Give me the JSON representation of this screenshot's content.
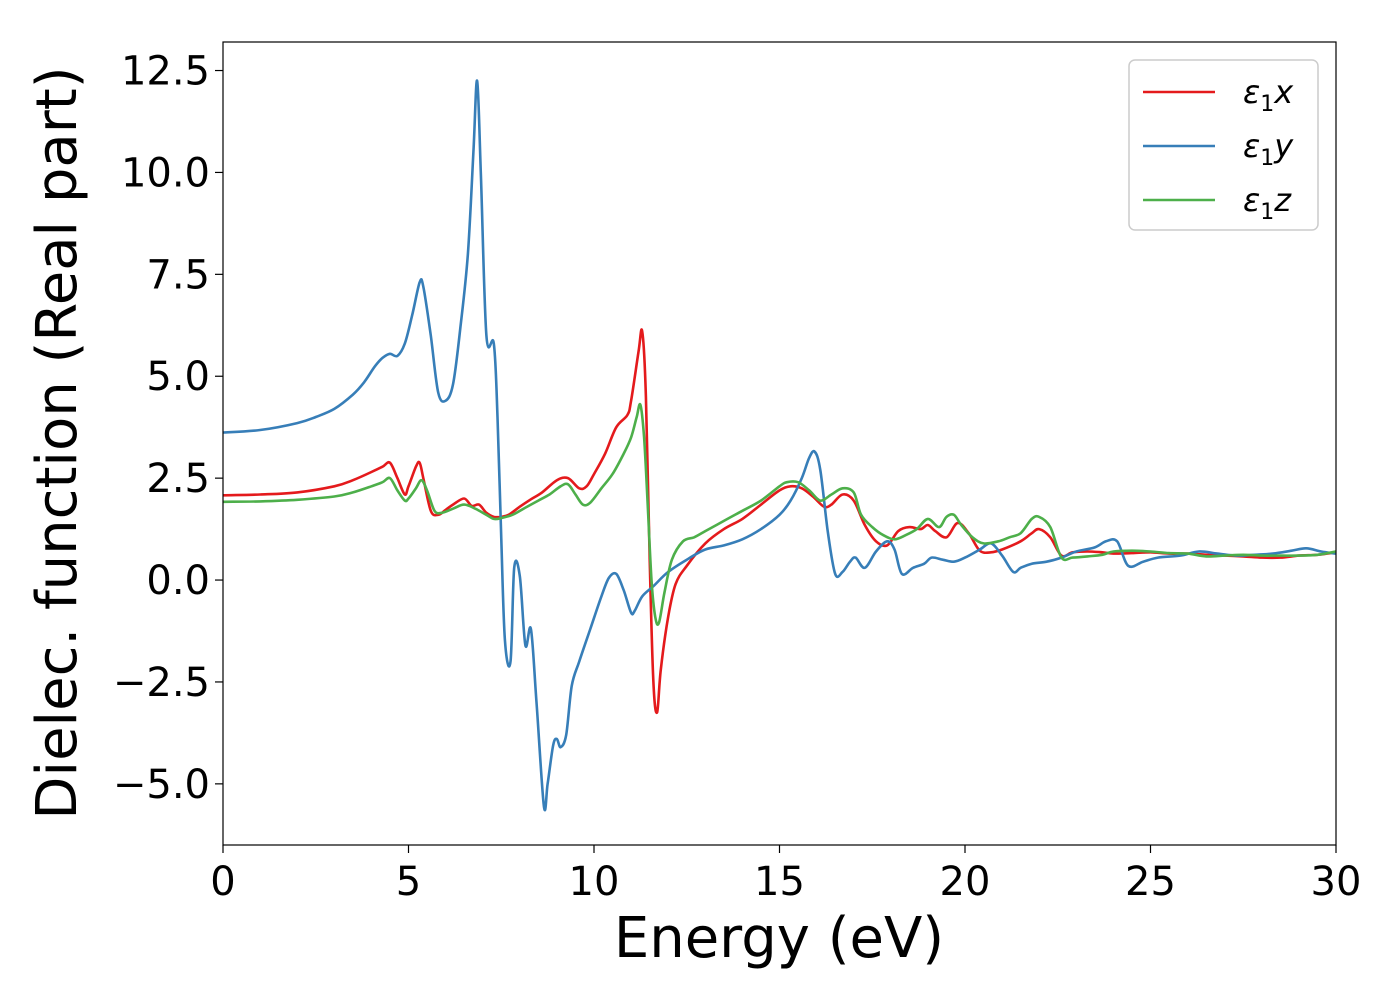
{
  "chart_data": {
    "type": "line",
    "title": "",
    "xlabel": "Energy (eV)",
    "ylabel": "Dielec. function (Real part)",
    "xlim": [
      0,
      30
    ],
    "ylim": [
      -6.5,
      13.2
    ],
    "xticks": [
      "0",
      "5",
      "10",
      "15",
      "20",
      "25",
      "30"
    ],
    "yticks": [
      "−5.0",
      "−2.5",
      "0.0",
      "2.5",
      "5.0",
      "7.5",
      "10.0",
      "12.5"
    ],
    "grid": false,
    "legend_position": "top-right",
    "series": [
      {
        "name": "ε1x",
        "legend": {
          "symbol": "ε",
          "sub": "1",
          "axis": "x"
        },
        "color": "#e41a1c",
        "x": [
          0,
          1,
          2,
          3,
          3.5,
          4,
          4.3,
          4.5,
          4.7,
          4.9,
          5.0,
          5.2,
          5.3,
          5.4,
          5.6,
          5.8,
          6.0,
          6.2,
          6.5,
          6.7,
          6.9,
          7.1,
          7.3,
          7.5,
          7.7,
          8.0,
          8.3,
          8.6,
          9.0,
          9.3,
          9.6,
          9.8,
          10.0,
          10.3,
          10.6,
          10.9,
          11.0,
          11.2,
          11.3,
          11.4,
          11.5,
          11.6,
          11.7,
          11.8,
          12.0,
          12.2,
          12.5,
          13,
          13.5,
          14,
          14.5,
          15,
          15.3,
          15.6,
          15.9,
          16.2,
          16.4,
          16.7,
          17.0,
          17.3,
          17.6,
          17.9,
          18.2,
          18.5,
          18.8,
          19.0,
          19.2,
          19.5,
          19.8,
          20.1,
          20.4,
          20.7,
          21.0,
          21.5,
          21.8,
          22.0,
          22.3,
          22.6,
          22.9,
          23.3,
          23.7,
          24.0,
          24.5,
          25,
          25.5,
          26,
          26.5,
          27,
          27.5,
          28,
          28.5,
          29,
          29.5,
          30
        ],
        "y": [
          2.08,
          2.1,
          2.15,
          2.3,
          2.45,
          2.65,
          2.78,
          2.88,
          2.5,
          2.1,
          2.3,
          2.78,
          2.88,
          2.5,
          1.7,
          1.6,
          1.72,
          1.85,
          2.0,
          1.82,
          1.85,
          1.65,
          1.55,
          1.55,
          1.6,
          1.8,
          1.98,
          2.15,
          2.45,
          2.5,
          2.25,
          2.3,
          2.6,
          3.1,
          3.75,
          4.05,
          4.4,
          5.6,
          6.1,
          4.5,
          0.5,
          -2.5,
          -3.25,
          -2.2,
          -0.9,
          -0.1,
          0.35,
          0.9,
          1.25,
          1.5,
          1.85,
          2.2,
          2.3,
          2.25,
          2.05,
          1.8,
          1.85,
          2.1,
          1.95,
          1.35,
          0.95,
          0.85,
          1.2,
          1.3,
          1.25,
          1.35,
          1.2,
          1.05,
          1.4,
          1.15,
          0.72,
          0.68,
          0.75,
          0.95,
          1.15,
          1.25,
          1.05,
          0.6,
          0.68,
          0.7,
          0.68,
          0.65,
          0.66,
          0.68,
          0.65,
          0.65,
          0.62,
          0.6,
          0.58,
          0.55,
          0.55,
          0.6,
          0.62,
          0.68
        ]
      },
      {
        "name": "ε1y",
        "legend": {
          "symbol": "ε",
          "sub": "1",
          "axis": "y"
        },
        "color": "#377eb8",
        "x": [
          0,
          1,
          2,
          2.5,
          3,
          3.5,
          3.8,
          4.1,
          4.3,
          4.5,
          4.7,
          4.9,
          5.1,
          5.3,
          5.4,
          5.6,
          5.8,
          6.0,
          6.2,
          6.4,
          6.6,
          6.75,
          6.85,
          6.95,
          7.1,
          7.3,
          7.4,
          7.5,
          7.6,
          7.75,
          7.85,
          8.0,
          8.15,
          8.3,
          8.45,
          8.65,
          8.75,
          8.9,
          9.0,
          9.1,
          9.25,
          9.4,
          9.6,
          9.9,
          10.2,
          10.4,
          10.6,
          10.8,
          11.0,
          11.1,
          11.3,
          11.6,
          12,
          12.5,
          13,
          13.5,
          14,
          14.5,
          15,
          15.3,
          15.6,
          15.8,
          15.95,
          16.1,
          16.3,
          16.5,
          16.7,
          16.9,
          17.05,
          17.3,
          17.6,
          17.9,
          18.1,
          18.3,
          18.6,
          18.9,
          19.1,
          19.4,
          19.7,
          20.0,
          20.4,
          20.7,
          21.0,
          21.3,
          21.5,
          21.8,
          22.2,
          22.6,
          23.0,
          23.5,
          23.8,
          24.1,
          24.4,
          24.8,
          25.2,
          25.8,
          26.3,
          26.8,
          27.3,
          27.8,
          28.3,
          28.8,
          29.2,
          29.6,
          30
        ],
        "y": [
          3.62,
          3.68,
          3.85,
          4.0,
          4.2,
          4.55,
          4.85,
          5.25,
          5.45,
          5.55,
          5.5,
          5.8,
          6.5,
          7.3,
          7.2,
          6.0,
          4.6,
          4.4,
          4.8,
          6.2,
          8.0,
          10.5,
          12.25,
          10.0,
          6.0,
          5.8,
          4.0,
          1.0,
          -1.5,
          -2.0,
          0.3,
          0.1,
          -1.6,
          -1.2,
          -3.0,
          -5.55,
          -5.0,
          -4.05,
          -3.9,
          -4.1,
          -3.8,
          -2.6,
          -2.0,
          -1.2,
          -0.4,
          0.05,
          0.15,
          -0.25,
          -0.8,
          -0.75,
          -0.4,
          -0.15,
          0.2,
          0.5,
          0.75,
          0.85,
          1.0,
          1.25,
          1.6,
          1.95,
          2.5,
          3.0,
          3.15,
          2.7,
          1.2,
          0.15,
          0.2,
          0.45,
          0.55,
          0.3,
          0.7,
          0.95,
          0.75,
          0.15,
          0.3,
          0.4,
          0.55,
          0.5,
          0.45,
          0.55,
          0.75,
          0.9,
          0.6,
          0.2,
          0.3,
          0.4,
          0.45,
          0.55,
          0.7,
          0.8,
          0.95,
          0.95,
          0.35,
          0.45,
          0.55,
          0.6,
          0.7,
          0.65,
          0.6,
          0.62,
          0.65,
          0.72,
          0.78,
          0.7,
          0.65
        ]
      },
      {
        "name": "ε1z",
        "legend": {
          "symbol": "ε",
          "sub": "1",
          "axis": "z"
        },
        "color": "#4daf4a",
        "x": [
          0,
          1,
          2,
          3,
          3.5,
          4,
          4.3,
          4.5,
          4.7,
          4.9,
          5.0,
          5.2,
          5.35,
          5.5,
          5.7,
          5.9,
          6.2,
          6.5,
          6.8,
          7.1,
          7.3,
          7.5,
          7.8,
          8.1,
          8.5,
          8.8,
          9.1,
          9.3,
          9.5,
          9.7,
          9.9,
          10.2,
          10.5,
          10.8,
          11.0,
          11.15,
          11.25,
          11.35,
          11.45,
          11.55,
          11.65,
          11.75,
          11.9,
          12.1,
          12.4,
          12.7,
          13,
          13.5,
          14,
          14.5,
          15,
          15.2,
          15.5,
          15.8,
          16.1,
          16.4,
          16.7,
          17.0,
          17.2,
          17.5,
          17.8,
          18.1,
          18.4,
          18.7,
          19.0,
          19.3,
          19.5,
          19.7,
          19.9,
          20.2,
          20.5,
          20.9,
          21.2,
          21.5,
          21.8,
          22.0,
          22.3,
          22.6,
          22.9,
          23.3,
          23.7,
          24.0,
          24.5,
          25,
          25.5,
          26,
          26.5,
          27,
          27.5,
          28,
          28.5,
          29,
          29.5,
          30
        ],
        "y": [
          1.92,
          1.93,
          1.97,
          2.05,
          2.15,
          2.3,
          2.4,
          2.5,
          2.2,
          1.95,
          2.0,
          2.25,
          2.45,
          2.2,
          1.7,
          1.65,
          1.75,
          1.85,
          1.75,
          1.6,
          1.5,
          1.52,
          1.6,
          1.75,
          1.95,
          2.1,
          2.3,
          2.35,
          2.1,
          1.85,
          1.9,
          2.25,
          2.6,
          3.1,
          3.5,
          4.0,
          4.3,
          3.5,
          1.8,
          0.0,
          -0.9,
          -1.05,
          -0.3,
          0.5,
          0.95,
          1.05,
          1.2,
          1.45,
          1.7,
          1.95,
          2.3,
          2.4,
          2.4,
          2.2,
          1.95,
          2.1,
          2.25,
          2.15,
          1.6,
          1.3,
          1.1,
          1.0,
          1.1,
          1.25,
          1.5,
          1.3,
          1.55,
          1.6,
          1.35,
          1.05,
          0.9,
          0.95,
          1.05,
          1.15,
          1.5,
          1.55,
          1.3,
          0.55,
          0.55,
          0.58,
          0.62,
          0.7,
          0.72,
          0.7,
          0.66,
          0.65,
          0.58,
          0.6,
          0.62,
          0.6,
          0.6,
          0.6,
          0.62,
          0.7
        ]
      }
    ]
  }
}
